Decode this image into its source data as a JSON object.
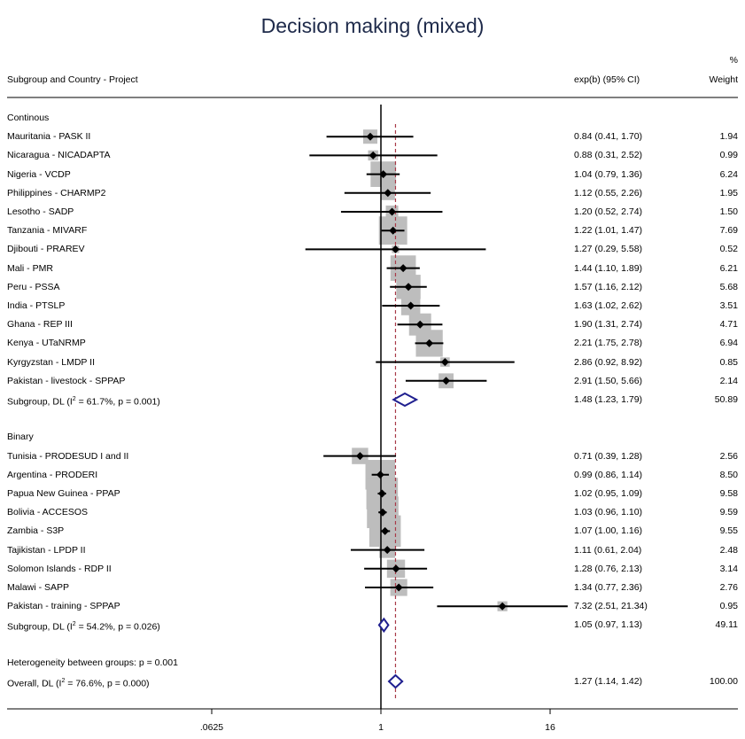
{
  "title": "Decision making (mixed)",
  "headers": {
    "label": "Subgroup and Country - Project",
    "estimate": "exp(b) (95% CI)",
    "weight_line1": "%",
    "weight_line2": "Weight"
  },
  "heterogeneity_between": "Heterogeneity between groups: p = 0.001",
  "chart_data": {
    "type": "forest",
    "scale": "log2",
    "xticks": [
      ".0625",
      "1",
      "16"
    ],
    "xtick_values": [
      0.0625,
      1,
      16
    ],
    "xlim": [
      0.0136,
      90
    ],
    "null_line": 1,
    "overall_line": 1.27,
    "grid": false,
    "rows": [
      {
        "kind": "group",
        "label": "Continous"
      },
      {
        "kind": "study",
        "label": "Mauritania - PASK II",
        "est": 0.84,
        "lo": 0.41,
        "hi": 1.7,
        "ci_text": "0.84 (0.41, 1.70)",
        "weight": "1.94"
      },
      {
        "kind": "study",
        "label": "Nicaragua - NICADAPTA",
        "est": 0.88,
        "lo": 0.31,
        "hi": 2.52,
        "ci_text": "0.88 (0.31, 2.52)",
        "weight": "0.99"
      },
      {
        "kind": "study",
        "label": "Nigeria - VCDP",
        "est": 1.04,
        "lo": 0.79,
        "hi": 1.36,
        "ci_text": "1.04 (0.79, 1.36)",
        "weight": "6.24"
      },
      {
        "kind": "study",
        "label": "Philippines - CHARMP2",
        "est": 1.12,
        "lo": 0.55,
        "hi": 2.26,
        "ci_text": "1.12 (0.55, 2.26)",
        "weight": "1.95"
      },
      {
        "kind": "study",
        "label": "Lesotho - SADP",
        "est": 1.2,
        "lo": 0.52,
        "hi": 2.74,
        "ci_text": "1.20 (0.52, 2.74)",
        "weight": "1.50"
      },
      {
        "kind": "study",
        "label": "Tanzania - MIVARF",
        "est": 1.22,
        "lo": 1.01,
        "hi": 1.47,
        "ci_text": "1.22 (1.01, 1.47)",
        "weight": "7.69"
      },
      {
        "kind": "study",
        "label": "Djibouti - PRAREV",
        "est": 1.27,
        "lo": 0.29,
        "hi": 5.58,
        "ci_text": "1.27 (0.29, 5.58)",
        "weight": "0.52"
      },
      {
        "kind": "study",
        "label": "Mali - PMR",
        "est": 1.44,
        "lo": 1.1,
        "hi": 1.89,
        "ci_text": "1.44 (1.10, 1.89)",
        "weight": "6.21"
      },
      {
        "kind": "study",
        "label": "Peru - PSSA",
        "est": 1.57,
        "lo": 1.16,
        "hi": 2.12,
        "ci_text": "1.57 (1.16, 2.12)",
        "weight": "5.68"
      },
      {
        "kind": "study",
        "label": "India - PTSLP",
        "est": 1.63,
        "lo": 1.02,
        "hi": 2.62,
        "ci_text": "1.63 (1.02, 2.62)",
        "weight": "3.51"
      },
      {
        "kind": "study",
        "label": "Ghana - REP III",
        "est": 1.9,
        "lo": 1.31,
        "hi": 2.74,
        "ci_text": "1.90 (1.31, 2.74)",
        "weight": "4.71"
      },
      {
        "kind": "study",
        "label": "Kenya - UTaNRMP",
        "est": 2.21,
        "lo": 1.75,
        "hi": 2.78,
        "ci_text": "2.21 (1.75, 2.78)",
        "weight": "6.94"
      },
      {
        "kind": "study",
        "label": "Kyrgyzstan - LMDP II",
        "est": 2.86,
        "lo": 0.92,
        "hi": 8.92,
        "ci_text": "2.86 (0.92, 8.92)",
        "weight": "0.85"
      },
      {
        "kind": "study",
        "label": "Pakistan - livestock - SPPAP",
        "est": 2.91,
        "lo": 1.5,
        "hi": 5.66,
        "ci_text": "2.91 (1.50, 5.66)",
        "weight": "2.14"
      },
      {
        "kind": "subtotal",
        "label_pre": "Subgroup, DL (I",
        "label_sup": "2",
        "label_post": " = 61.7%, p = 0.001)",
        "est": 1.48,
        "lo": 1.23,
        "hi": 1.79,
        "ci_text": "1.48 (1.23, 1.79)",
        "weight": "50.89"
      },
      {
        "kind": "blank"
      },
      {
        "kind": "group",
        "label": "Binary"
      },
      {
        "kind": "study",
        "label": "Tunisia - PRODESUD I and II",
        "est": 0.71,
        "lo": 0.39,
        "hi": 1.28,
        "ci_text": "0.71 (0.39, 1.28)",
        "weight": "2.56"
      },
      {
        "kind": "study",
        "label": "Argentina - PRODERI",
        "est": 0.99,
        "lo": 0.86,
        "hi": 1.14,
        "ci_text": "0.99 (0.86, 1.14)",
        "weight": "8.50"
      },
      {
        "kind": "study",
        "label": "Papua New Guinea - PPAP",
        "est": 1.02,
        "lo": 0.95,
        "hi": 1.09,
        "ci_text": "1.02 (0.95, 1.09)",
        "weight": "9.58"
      },
      {
        "kind": "study",
        "label": "Bolivia - ACCESOS",
        "est": 1.03,
        "lo": 0.96,
        "hi": 1.1,
        "ci_text": "1.03 (0.96, 1.10)",
        "weight": "9.59"
      },
      {
        "kind": "study",
        "label": "Zambia - S3P",
        "est": 1.07,
        "lo": 1.0,
        "hi": 1.16,
        "ci_text": "1.07 (1.00, 1.16)",
        "weight": "9.55"
      },
      {
        "kind": "study",
        "label": "Tajikistan - LPDP II",
        "est": 1.11,
        "lo": 0.61,
        "hi": 2.04,
        "ci_text": "1.11 (0.61, 2.04)",
        "weight": "2.48"
      },
      {
        "kind": "study",
        "label": "Solomon Islands - RDP II",
        "est": 1.28,
        "lo": 0.76,
        "hi": 2.13,
        "ci_text": "1.28 (0.76, 2.13)",
        "weight": "3.14"
      },
      {
        "kind": "study",
        "label": "Malawi - SAPP",
        "est": 1.34,
        "lo": 0.77,
        "hi": 2.36,
        "ci_text": "1.34 (0.77, 2.36)",
        "weight": "2.76"
      },
      {
        "kind": "study",
        "label": "Pakistan - training - SPPAP",
        "est": 7.32,
        "lo": 2.51,
        "hi": 21.34,
        "ci_text": "7.32 (2.51, 21.34)",
        "weight": "0.95"
      },
      {
        "kind": "subtotal",
        "label_pre": "Subgroup, DL (I",
        "label_sup": "2",
        "label_post": " = 54.2%, p = 0.026)",
        "est": 1.05,
        "lo": 0.97,
        "hi": 1.13,
        "ci_text": "1.05 (0.97, 1.13)",
        "weight": "49.11"
      },
      {
        "kind": "blank"
      },
      {
        "kind": "note",
        "label": "Heterogeneity between groups: p = 0.001"
      },
      {
        "kind": "overall",
        "label_pre": "Overall, DL (I",
        "label_sup": "2",
        "label_post": " = 76.6%, p = 0.000)",
        "est": 1.27,
        "lo": 1.14,
        "hi": 1.42,
        "ci_text": "1.27 (1.14, 1.42)",
        "weight": "100.00"
      }
    ]
  }
}
